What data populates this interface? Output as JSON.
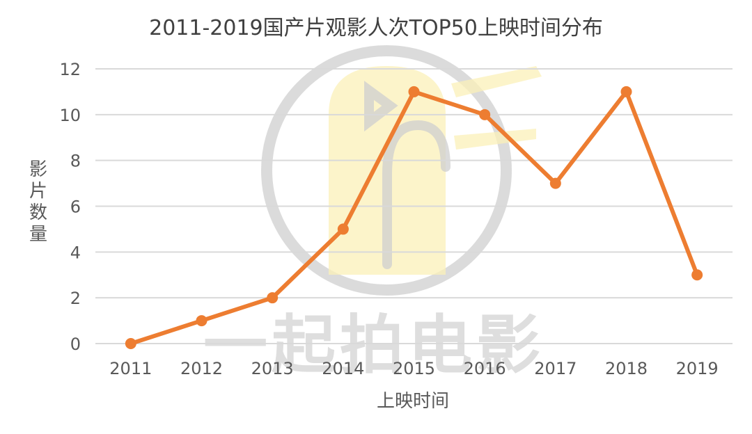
{
  "chart_data": {
    "type": "line",
    "title": "2011-2019国产片观影人次TOP50上映时间分布",
    "xlabel": "上映时间",
    "ylabel": "影片数量",
    "categories": [
      "2011",
      "2012",
      "2013",
      "2014",
      "2015",
      "2016",
      "2017",
      "2018",
      "2019"
    ],
    "series": [
      {
        "name": "影片数量",
        "values": [
          0,
          1,
          2,
          5,
          11,
          10,
          7,
          11,
          3
        ],
        "color": "#ed7d31"
      }
    ],
    "ylim": [
      0,
      12
    ],
    "yticks": [
      "0",
      "2",
      "4",
      "6",
      "8",
      "10",
      "12"
    ],
    "grid": true,
    "legend": "none"
  },
  "watermark": {
    "text": "一起拍电影",
    "logo": "film-clapper-logo-icon"
  },
  "colors": {
    "line": "#ed7d31",
    "grid": "#d9d9d9",
    "text": "#595959",
    "title": "#404040"
  }
}
